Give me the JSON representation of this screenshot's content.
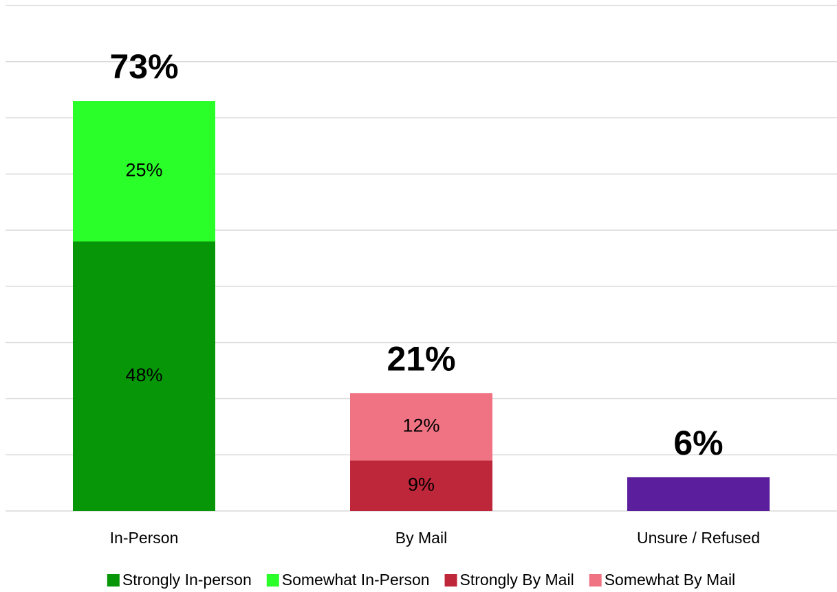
{
  "chart_data": {
    "type": "stacked_bar",
    "categories": [
      "In-Person",
      "By Mail",
      "Unsure / Refused"
    ],
    "series": [
      {
        "name": "Strongly In-person",
        "color": "#079607",
        "values": [
          48,
          null,
          null
        ],
        "value_labels": [
          "48%",
          null,
          null
        ]
      },
      {
        "name": "Somewhat In-Person",
        "color": "#2aff2a",
        "values": [
          25,
          null,
          null
        ],
        "value_labels": [
          "25%",
          null,
          null
        ]
      },
      {
        "name": "Strongly By Mail",
        "color": "#be2639",
        "values": [
          null,
          9,
          null
        ],
        "value_labels": [
          null,
          "9%",
          null
        ]
      },
      {
        "name": "Somewhat By Mail",
        "color": "#f07383",
        "values": [
          null,
          12,
          null
        ],
        "value_labels": [
          null,
          "12%",
          null
        ]
      },
      {
        "color": "#5b1f9e",
        "values": [
          null,
          null,
          6
        ]
      }
    ],
    "totals": [
      73,
      21,
      6
    ],
    "total_labels": [
      "73%",
      "21%",
      "6%"
    ],
    "ylim": [
      0,
      90
    ],
    "yticks": [
      0,
      10,
      20,
      30,
      40,
      50,
      60,
      70,
      80,
      90
    ],
    "grid": true,
    "legend": "bottom"
  }
}
